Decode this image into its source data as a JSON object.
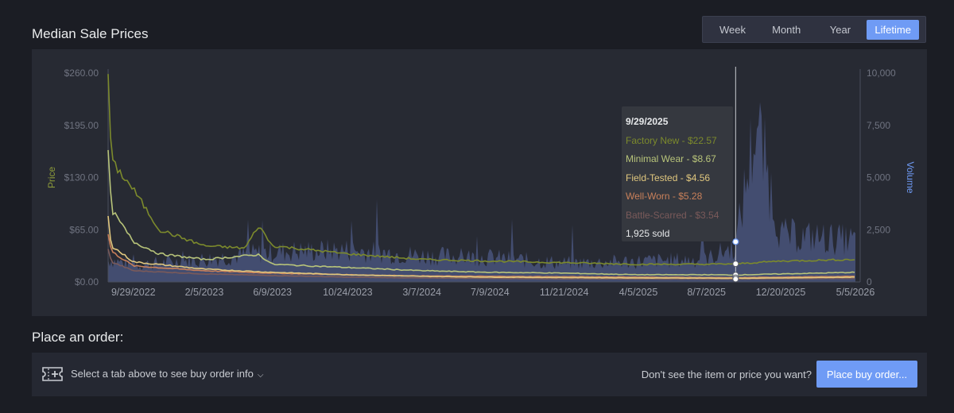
{
  "header": {
    "title": "Median Sale Prices"
  },
  "range_tabs": [
    {
      "label": "Week",
      "active": false
    },
    {
      "label": "Month",
      "active": false
    },
    {
      "label": "Year",
      "active": false
    },
    {
      "label": "Lifetime",
      "active": true
    }
  ],
  "chart_data": {
    "type": "line",
    "ylabel": "Price",
    "y2label": "Volume",
    "ylim": [
      0,
      260
    ],
    "y2lim": [
      0,
      10000
    ],
    "y_ticks": [
      "$260.00",
      "$195.00",
      "$130.00",
      "$65.00",
      "$0.00"
    ],
    "y2_ticks": [
      "10,000",
      "7,500",
      "5,000",
      "2,500",
      "0"
    ],
    "x_ticks": [
      "9/29/2022",
      "2/5/2023",
      "6/9/2023",
      "10/24/2023",
      "3/7/2024",
      "7/9/2024",
      "11/21/2024",
      "4/5/2025",
      "8/7/2025",
      "12/20/2025",
      "5/5/2026"
    ],
    "grid": false,
    "colors": {
      "factory_new": "#7c8a2c",
      "minimal_wear": "#b8c47a",
      "field_tested": "#e0c77e",
      "well_worn": "#c9805a",
      "battle_scarred": "#7a5a5a",
      "volume": "#4e5a86"
    },
    "series": [
      {
        "name": "Factory New",
        "x": [
          "8/14/2022",
          "8/20/2022",
          "9/29/2022",
          "11/15/2022",
          "2/5/2023",
          "4/20/2023",
          "5/15/2023",
          "6/9/2023",
          "10/24/2023",
          "3/7/2024",
          "7/9/2024",
          "11/21/2024",
          "4/5/2025",
          "8/7/2025",
          "9/29/2025",
          "12/20/2025",
          "5/5/2026"
        ],
        "values": [
          260,
          150,
          115,
          65,
          45,
          42,
          70,
          45,
          35,
          28,
          26,
          24,
          22,
          22,
          22.57,
          26,
          28
        ]
      },
      {
        "name": "Minimal Wear",
        "x": [
          "8/14/2022",
          "8/20/2022",
          "9/29/2022",
          "11/15/2022",
          "2/5/2023",
          "5/15/2023",
          "6/9/2023",
          "10/24/2023",
          "3/7/2024",
          "7/9/2024",
          "11/21/2024",
          "4/5/2025",
          "8/7/2025",
          "9/29/2025",
          "12/20/2025",
          "5/5/2026"
        ],
        "values": [
          160,
          90,
          50,
          35,
          28,
          34,
          22,
          18,
          14,
          12,
          11,
          9,
          9,
          8.67,
          10,
          12
        ]
      },
      {
        "name": "Field-Tested",
        "x": [
          "8/14/2022",
          "8/20/2022",
          "9/29/2022",
          "2/5/2023",
          "6/9/2023",
          "10/24/2023",
          "3/7/2024",
          "7/9/2024",
          "11/21/2024",
          "4/5/2025",
          "8/7/2025",
          "9/29/2025",
          "12/20/2025",
          "5/5/2026"
        ],
        "values": [
          80,
          45,
          25,
          16,
          12,
          9,
          7,
          6,
          5.5,
          5,
          4.8,
          4.56,
          5,
          6
        ]
      },
      {
        "name": "Well-Worn",
        "x": [
          "8/14/2022",
          "8/20/2022",
          "9/29/2022",
          "2/5/2023",
          "6/9/2023",
          "10/24/2023",
          "3/7/2024",
          "7/9/2024",
          "11/21/2024",
          "4/5/2025",
          "8/7/2025",
          "9/29/2025",
          "12/20/2025",
          "5/5/2026"
        ],
        "values": [
          60,
          38,
          20,
          14,
          11,
          9,
          7.5,
          7,
          6.5,
          6,
          5.5,
          5.28,
          6,
          7
        ]
      },
      {
        "name": "Battle-Scarred",
        "x": [
          "8/14/2022",
          "8/20/2022",
          "9/29/2022",
          "2/5/2023",
          "6/9/2023",
          "10/24/2023",
          "3/7/2024",
          "7/9/2024",
          "11/21/2024",
          "4/5/2025",
          "8/7/2025",
          "9/29/2025",
          "12/20/2025",
          "5/5/2026"
        ],
        "values": [
          40,
          25,
          14,
          10,
          8,
          6,
          5,
          4.5,
          4,
          3.8,
          3.6,
          3.54,
          4,
          4.5
        ]
      }
    ],
    "volume": {
      "x": [
        "8/14/2022",
        "9/29/2022",
        "2/5/2023",
        "6/9/2023",
        "10/24/2023",
        "3/7/2024",
        "7/9/2024",
        "11/21/2024",
        "4/5/2025",
        "8/7/2025",
        "9/29/2025",
        "11/5/2025",
        "12/20/2025",
        "5/5/2026"
      ],
      "values": [
        1200,
        900,
        1200,
        1600,
        1700,
        1400,
        1300,
        1000,
        1100,
        1200,
        1925,
        8500,
        2500,
        2200
      ]
    }
  },
  "tooltip": {
    "date": "9/29/2025",
    "lines": [
      {
        "text": "Factory New - $22.57",
        "color": "#7c8a2c"
      },
      {
        "text": "Minimal Wear - $8.67",
        "color": "#b8c47a"
      },
      {
        "text": "Field-Tested - $4.56",
        "color": "#e0c77e"
      },
      {
        "text": "Well-Worn - $5.28",
        "color": "#c9805a"
      },
      {
        "text": "Battle-Scarred - $3.54",
        "color": "#7a5a5a"
      }
    ],
    "sold": "1,925 sold"
  },
  "order": {
    "title": "Place an order:",
    "info_text": "Select a tab above to see buy order info",
    "question": "Don't see the item or price you want?",
    "button_label": "Place buy order..."
  }
}
